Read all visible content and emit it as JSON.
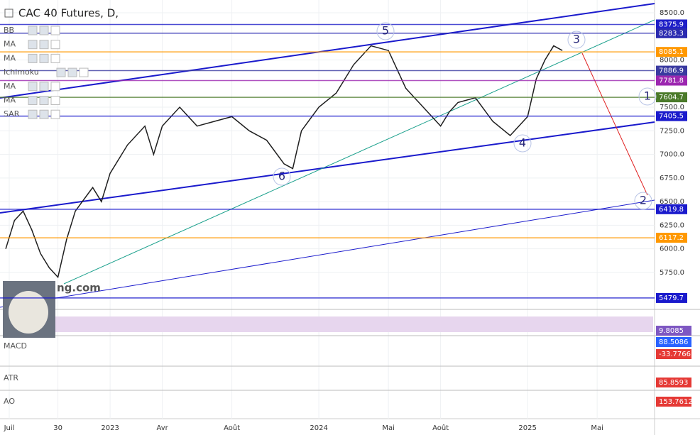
{
  "chart_data": {
    "type": "line",
    "title": "CAC 40 Futures, D,",
    "indicator_legend": [
      "BB",
      "MA",
      "MA",
      "Ichimoku",
      "MA",
      "MA",
      "SAR"
    ],
    "watermark": "ng.com",
    "color": "#1f1f1f",
    "x": [
      0,
      0.5,
      1,
      1.5,
      2,
      2.5,
      3,
      3.5,
      4,
      5,
      5.5,
      6,
      7,
      8,
      8.5,
      9,
      10,
      11,
      12,
      13,
      14,
      15,
      16,
      16.5,
      17,
      18,
      19,
      20,
      21,
      22,
      22.5,
      23,
      24,
      25,
      25.5,
      26,
      27,
      28,
      29,
      30,
      30.5,
      31,
      31.5,
      32
    ],
    "values": [
      6000,
      6300,
      6400,
      6200,
      5950,
      5800,
      5700,
      6100,
      6400,
      6650,
      6500,
      6800,
      7100,
      7300,
      7000,
      7300,
      7500,
      7300,
      7350,
      7400,
      7250,
      7150,
      6900,
      6850,
      7250,
      7500,
      7650,
      7950,
      8150,
      8100,
      7900,
      7700,
      7500,
      7300,
      7450,
      7550,
      7600,
      7350,
      7200,
      7400,
      7800,
      8000,
      8150,
      8100
    ],
    "xlim": [
      -0.33,
      37.3
    ],
    "ylim": [
      5389,
      8635
    ],
    "xticks": [
      {
        "value": 0.2,
        "label": "Juil"
      },
      {
        "value": 3,
        "label": "30"
      },
      {
        "value": 6,
        "label": "2023"
      },
      {
        "value": 9,
        "label": "Avr"
      },
      {
        "value": 13,
        "label": "Août"
      },
      {
        "value": 18,
        "label": "2024"
      },
      {
        "value": 22,
        "label": "Mai"
      },
      {
        "value": 25,
        "label": "Août"
      },
      {
        "value": 30,
        "label": "2025"
      },
      {
        "value": 34,
        "label": "Mai"
      }
    ],
    "yticks": [
      {
        "value": 5750,
        "label": "5750.0"
      },
      {
        "value": 6000,
        "label": "6000.0"
      },
      {
        "value": 6250,
        "label": "6250.0"
      },
      {
        "value": 6500,
        "label": "6500.0"
      },
      {
        "value": 6750,
        "label": "6750.0"
      },
      {
        "value": 7000,
        "label": "7000.0"
      },
      {
        "value": 7250,
        "label": "7250.0"
      },
      {
        "value": 7500,
        "label": "7500.0"
      },
      {
        "value": 8000,
        "label": "8000.0"
      },
      {
        "value": 8500,
        "label": "8500.0"
      }
    ],
    "grid": true,
    "price_tags": [
      {
        "value": 8375.9,
        "color": "#1e1ec8"
      },
      {
        "value": 8283.3,
        "color": "#2b2bb0"
      },
      {
        "value": 8085.1,
        "color": "#ff9800"
      },
      {
        "value": 7886.9,
        "color": "#3a3aa0"
      },
      {
        "value": 7781.8,
        "color": "#9c27b0"
      },
      {
        "value": 7604.7,
        "color": "#4b7a2a"
      },
      {
        "value": 7405.5,
        "color": "#1a1acc"
      },
      {
        "value": 6419.8,
        "color": "#1a1acc"
      },
      {
        "value": 6117.2,
        "color": "#ff9800"
      },
      {
        "value": 5479.7,
        "color": "#1a1acc"
      }
    ],
    "annotations": [
      "1",
      "2",
      "3",
      "4",
      "5",
      "6"
    ],
    "rsi_value": 9.8085,
    "indicators": [
      {
        "label": "MACD",
        "values": [
          88.5086,
          -33.7766
        ]
      },
      {
        "label": "ATR",
        "values": [
          85.8593
        ]
      },
      {
        "label": "AO",
        "values": [
          153.7612
        ]
      }
    ]
  }
}
